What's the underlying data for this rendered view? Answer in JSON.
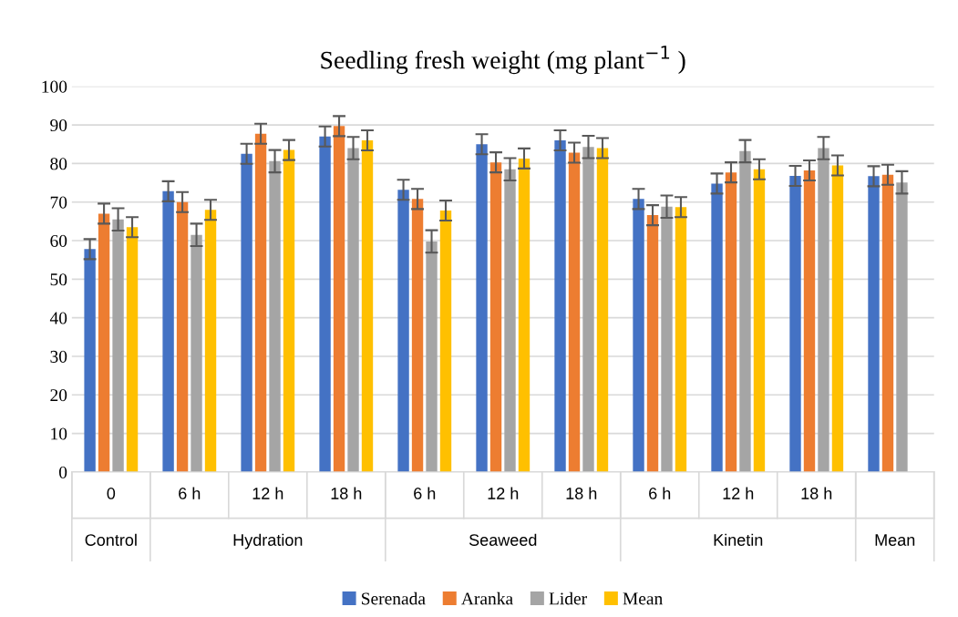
{
  "chart_data": {
    "type": "bar",
    "title": "Seedling fresh weight (mg plant$^{−1}$ )",
    "categories": [
      "0",
      "6 h",
      "12 h",
      "18 h",
      "6 h",
      "12 h",
      "18 h",
      "6 h",
      "12 h",
      "18 h",
      null
    ],
    "annotations": [
      "Control",
      "Hydration",
      "Seaweed",
      "Kinetin",
      "Mean"
    ],
    "series": [
      {
        "name": "Serenada",
        "color": "#4472c4",
        "values": [
          57.8,
          72.8,
          82.5,
          87,
          73.2,
          85,
          86,
          70.8,
          74.8,
          76.8,
          76.7
        ],
        "errors": [
          2.6,
          2.6,
          2.6,
          2.6,
          2.6,
          2.6,
          2.6,
          2.6,
          2.6,
          2.6,
          2.6
        ]
      },
      {
        "name": "Aranka",
        "color": "#ed7d31",
        "values": [
          67,
          70,
          87.7,
          89.7,
          70.8,
          80.3,
          82.8,
          66.6,
          77.7,
          78.2,
          77.1
        ],
        "errors": [
          2.6,
          2.6,
          2.6,
          2.6,
          2.6,
          2.6,
          2.6,
          2.6,
          2.6,
          2.6,
          2.6
        ]
      },
      {
        "name": "Lider",
        "color": "#a5a5a5",
        "values": [
          65.5,
          61.5,
          80.6,
          84,
          59.8,
          78.5,
          84.3,
          68.8,
          83.2,
          84,
          75.1
        ],
        "errors": [
          2.9,
          2.9,
          2.9,
          2.9,
          2.9,
          2.9,
          2.9,
          2.9,
          2.9,
          2.9,
          2.9
        ]
      },
      {
        "name": "Mean",
        "color": "#ffc000",
        "values": [
          63.5,
          68,
          83.5,
          86,
          67.8,
          81.3,
          84,
          68.7,
          78.5,
          79.5,
          null
        ],
        "errors": [
          2.6,
          2.6,
          2.6,
          2.6,
          2.6,
          2.6,
          2.6,
          2.6,
          2.6,
          2.6,
          null
        ]
      }
    ],
    "ylim": [
      0,
      100
    ],
    "yticks": [
      0,
      10,
      20,
      30,
      40,
      50,
      60,
      70,
      80,
      90,
      100
    ],
    "grid": "y",
    "legend": "bottom"
  }
}
